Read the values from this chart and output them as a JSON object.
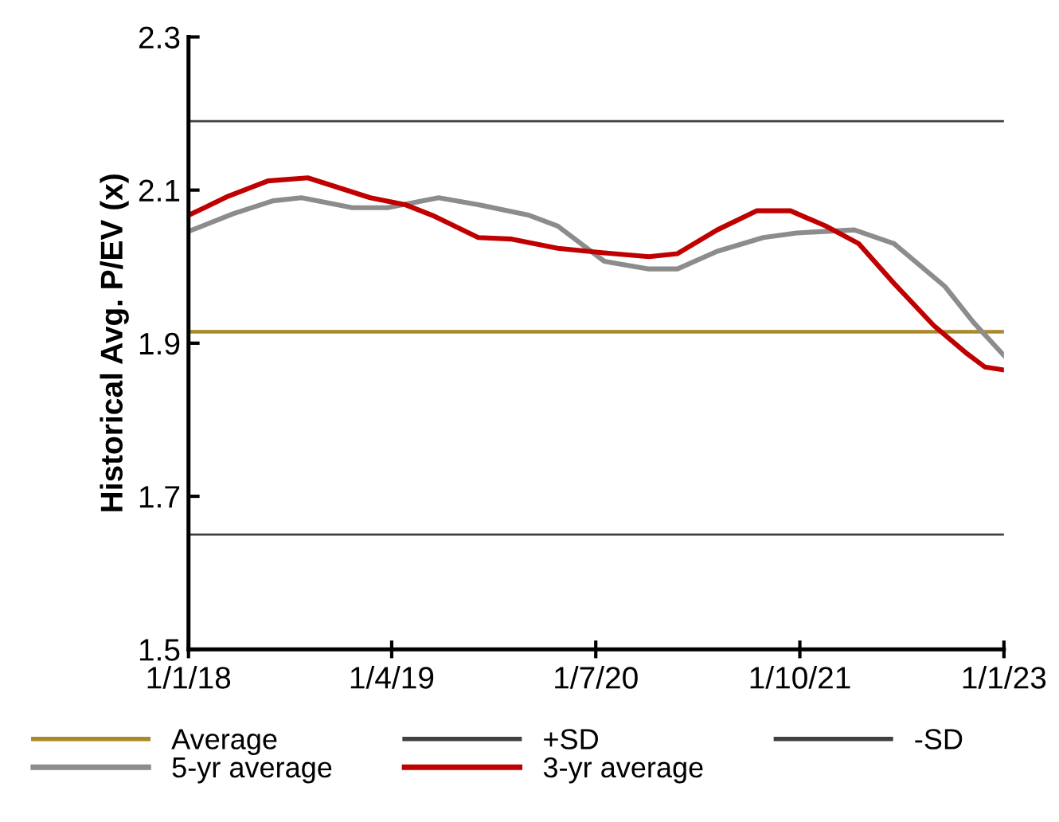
{
  "chart_data": {
    "type": "line",
    "ylabel": "Historical Avg. P/EV (x)",
    "xlim": [
      "2018-01-01",
      "2023-01-01"
    ],
    "xticks": [
      {
        "value": "2018-01-01",
        "label": "1/1/18"
      },
      {
        "value": "2019-04-01",
        "label": "1/4/19"
      },
      {
        "value": "2020-07-01",
        "label": "1/7/20"
      },
      {
        "value": "2021-10-01",
        "label": "1/10/21"
      },
      {
        "value": "2023-01-01",
        "label": "1/1/23"
      }
    ],
    "ylim": [
      1.5,
      2.3
    ],
    "yticks": [
      1.5,
      1.7,
      1.9,
      2.1,
      2.3
    ],
    "ref_lines": [
      {
        "axis": "y",
        "value": 1.915,
        "label": "Average",
        "color": "#a88a2a"
      },
      {
        "axis": "y",
        "value": 2.19,
        "label": "+SD",
        "color": "#404040"
      },
      {
        "axis": "y",
        "value": 1.65,
        "label": "-SD",
        "color": "#404040"
      }
    ],
    "series": [
      {
        "name": "5-yr average",
        "color": "#8c8c8c",
        "x": [
          "2018-01-01",
          "2018-04-11",
          "2018-07-09",
          "2018-09-11",
          "2019-01-03",
          "2019-03-23",
          "2019-07-15",
          "2019-10-12",
          "2020-02-03",
          "2020-04-07",
          "2020-07-20",
          "2020-10-28",
          "2020-12-31",
          "2021-03-30",
          "2021-07-11",
          "2021-09-24",
          "2022-01-31",
          "2022-04-30",
          "2022-08-22",
          "2022-10-25",
          "2023-01-01"
        ],
        "values": [
          2.046,
          2.069,
          2.086,
          2.09,
          2.077,
          2.077,
          2.09,
          2.081,
          2.067,
          2.053,
          2.007,
          1.997,
          1.997,
          2.02,
          2.038,
          2.044,
          2.048,
          2.03,
          1.974,
          1.927,
          1.884
        ]
      },
      {
        "name": "3-yr average",
        "color": "#c00000",
        "x": [
          "2018-01-01",
          "2018-03-31",
          "2018-06-28",
          "2018-09-25",
          "2019-02-12",
          "2019-05-01",
          "2019-07-01",
          "2019-10-12",
          "2019-12-26",
          "2020-04-07",
          "2020-07-20",
          "2020-10-28",
          "2020-12-31",
          "2021-03-30",
          "2021-06-27",
          "2021-09-10",
          "2021-11-28",
          "2022-02-10",
          "2022-04-30",
          "2022-07-28",
          "2022-10-11",
          "2022-11-19",
          "2023-01-01"
        ],
        "values": [
          2.067,
          2.092,
          2.112,
          2.116,
          2.09,
          2.081,
          2.067,
          2.038,
          2.036,
          2.024,
          2.018,
          2.013,
          2.017,
          2.048,
          2.073,
          2.073,
          2.053,
          2.03,
          1.978,
          1.923,
          1.886,
          1.869,
          1.865
        ]
      }
    ],
    "legend": "bottom",
    "grid": false
  }
}
